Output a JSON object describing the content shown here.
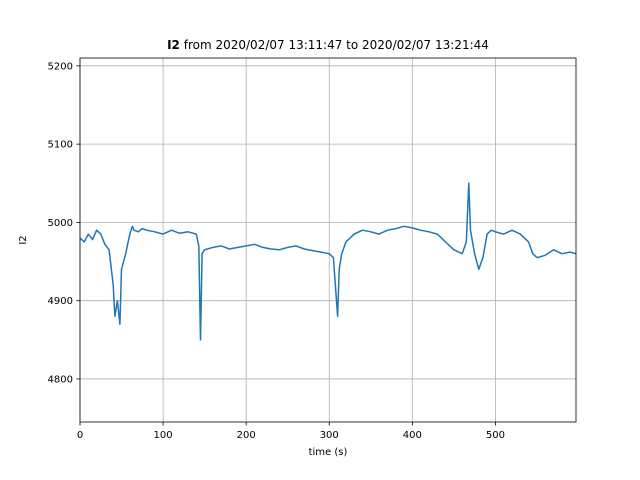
{
  "chart_data": {
    "type": "line",
    "title_bold": "I2",
    "title_rest": " from 2020/02/07 13:11:47 to 2020/02/07 13:21:44",
    "xlabel": "time (s)",
    "ylabel": "I2",
    "xlim": [
      0,
      597
    ],
    "ylim": [
      4745,
      5210
    ],
    "xticks": [
      0,
      100,
      200,
      300,
      400,
      500
    ],
    "yticks": [
      4800,
      4900,
      5000,
      5100,
      5200
    ],
    "grid": true,
    "line_color": "#1f77b4",
    "series": [
      {
        "x": [
          0,
          5,
          10,
          15,
          20,
          25,
          30,
          35,
          40,
          42,
          45,
          48,
          50,
          55,
          60,
          63,
          65,
          70,
          75,
          80,
          90,
          100,
          110,
          120,
          130,
          140,
          143,
          145,
          147,
          150,
          160,
          170,
          180,
          190,
          200,
          210,
          220,
          230,
          240,
          250,
          260,
          270,
          280,
          290,
          300,
          305,
          310,
          312,
          315,
          320,
          330,
          340,
          350,
          360,
          370,
          380,
          390,
          400,
          410,
          420,
          430,
          440,
          450,
          460,
          465,
          468,
          470,
          475,
          480,
          485,
          490,
          495,
          500,
          510,
          520,
          530,
          540,
          545,
          550,
          560,
          570,
          580,
          590,
          597
        ],
        "y": [
          4980,
          4975,
          4985,
          4978,
          4990,
          4985,
          4972,
          4965,
          4920,
          4880,
          4900,
          4870,
          4940,
          4960,
          4985,
          4995,
          4990,
          4988,
          4992,
          4990,
          4988,
          4985,
          4990,
          4986,
          4988,
          4985,
          4970,
          4850,
          4960,
          4965,
          4968,
          4970,
          4966,
          4968,
          4970,
          4972,
          4968,
          4966,
          4965,
          4968,
          4970,
          4966,
          4964,
          4962,
          4960,
          4955,
          4880,
          4940,
          4960,
          4975,
          4985,
          4990,
          4988,
          4985,
          4990,
          4992,
          4995,
          4993,
          4990,
          4988,
          4985,
          4975,
          4965,
          4960,
          4975,
          5050,
          4990,
          4960,
          4940,
          4955,
          4985,
          4990,
          4988,
          4985,
          4990,
          4985,
          4975,
          4960,
          4955,
          4958,
          4965,
          4960,
          4962,
          4960
        ]
      }
    ]
  }
}
